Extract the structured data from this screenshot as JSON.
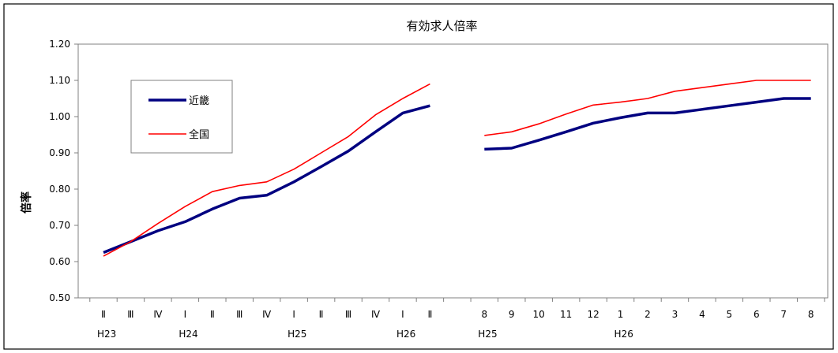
{
  "chart_data": {
    "type": "line",
    "title": "有効求人倍率",
    "ylabel": "倍率",
    "xlabel": "",
    "ylim": [
      0.5,
      1.2
    ],
    "yticks": [
      "0.50",
      "0.60",
      "0.70",
      "0.80",
      "0.90",
      "1.00",
      "1.10",
      "1.20"
    ],
    "grid": false,
    "legend_position": "top-left",
    "categories": [
      "Ⅱ",
      "Ⅲ",
      "Ⅳ",
      "Ⅰ",
      "Ⅱ",
      "Ⅲ",
      "Ⅳ",
      "Ⅰ",
      "Ⅱ",
      "Ⅲ",
      "Ⅳ",
      "Ⅰ",
      "Ⅱ",
      "",
      "8",
      "9",
      "10",
      "11",
      "12",
      "1",
      "2",
      "3",
      "4",
      "5",
      "6",
      "7",
      "8"
    ],
    "year_labels": [
      {
        "label": "H23",
        "at_index": 0
      },
      {
        "label": "H24",
        "at_index": 3
      },
      {
        "label": "H25",
        "at_index": 7
      },
      {
        "label": "H26",
        "at_index": 11
      },
      {
        "label": "H25",
        "at_index": 14
      },
      {
        "label": "H26",
        "at_index": 19
      }
    ],
    "series": [
      {
        "name": "近畿",
        "color": "#000080",
        "values": [
          0.625,
          0.655,
          0.685,
          0.71,
          0.745,
          0.775,
          0.783,
          0.82,
          0.862,
          0.905,
          0.958,
          1.01,
          1.03,
          null,
          0.91,
          0.913,
          0.935,
          0.958,
          0.982,
          0.997,
          1.01,
          1.01,
          1.02,
          1.03,
          1.04,
          1.05,
          1.05
        ]
      },
      {
        "name": "全国",
        "color": "#ff0000",
        "values": [
          0.615,
          0.655,
          0.705,
          0.752,
          0.793,
          0.81,
          0.82,
          0.855,
          0.9,
          0.945,
          1.005,
          1.05,
          1.09,
          null,
          0.948,
          0.958,
          0.98,
          1.007,
          1.032,
          1.04,
          1.05,
          1.07,
          1.08,
          1.09,
          1.1,
          1.1,
          1.1
        ]
      }
    ]
  }
}
